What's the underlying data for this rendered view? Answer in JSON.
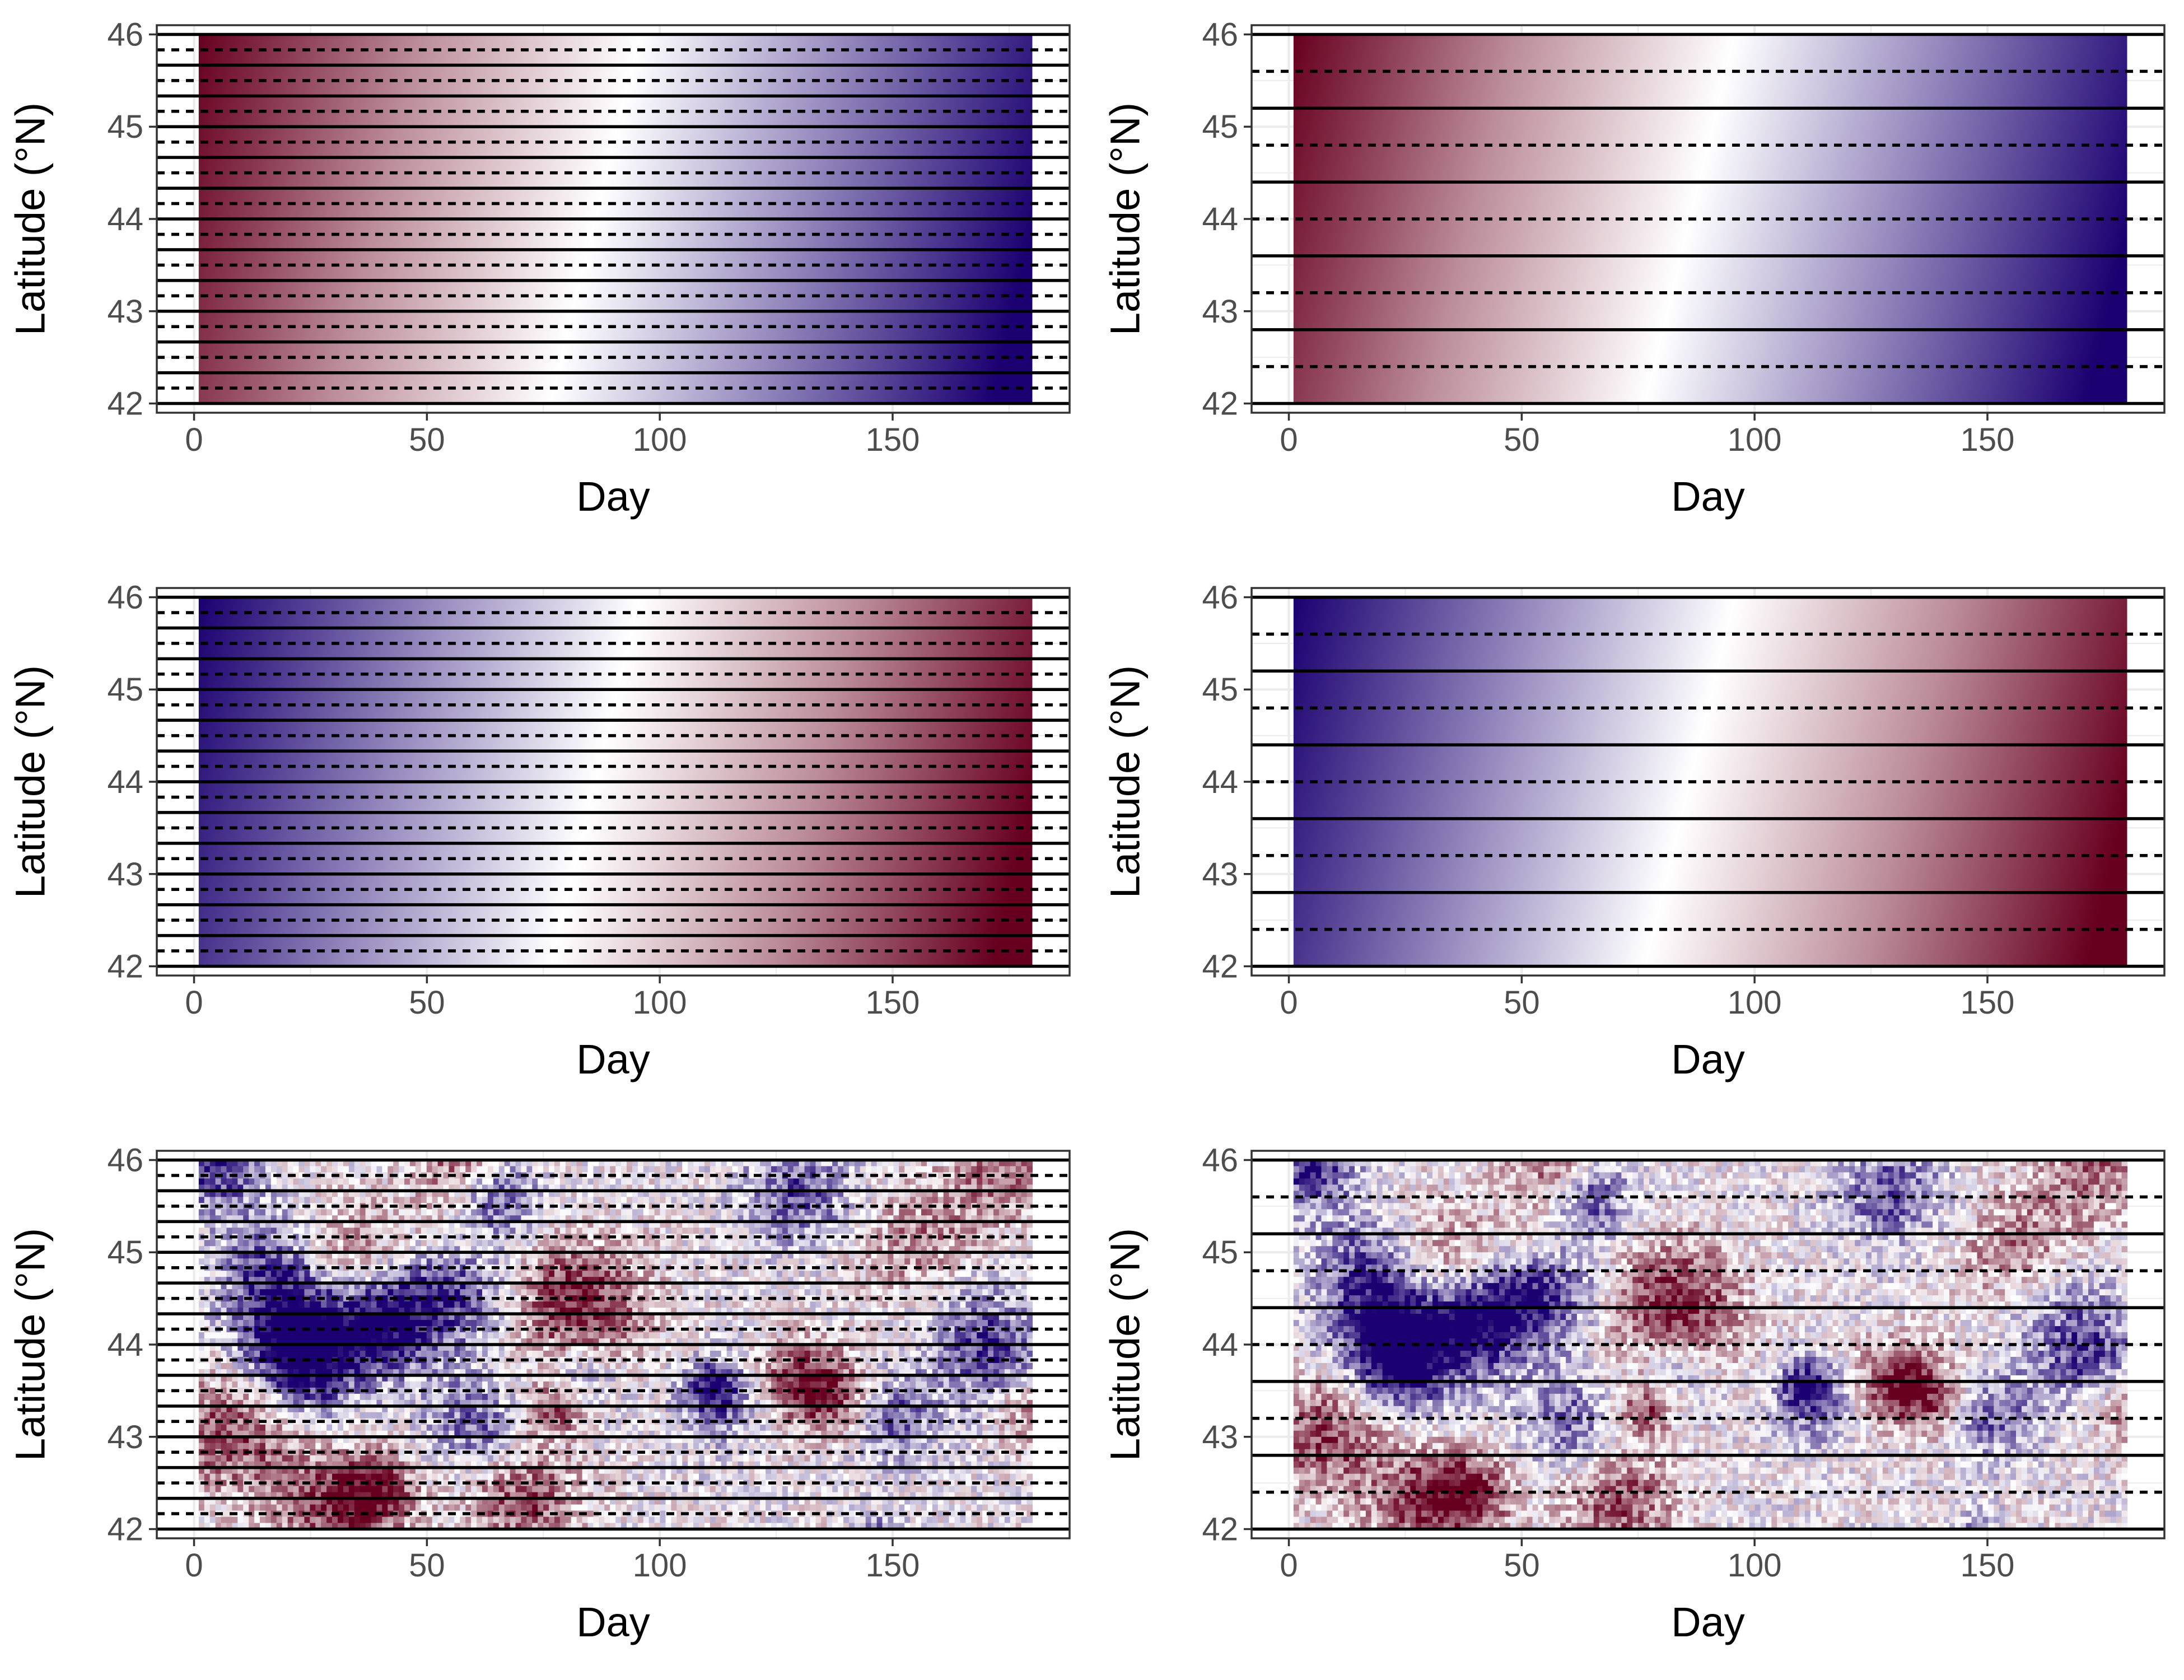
{
  "colors": {
    "low": "#67001f",
    "mid": "#ffffff",
    "high": "#1a0070",
    "panel_border": "#333333",
    "grid": "#ebebeb",
    "line": "#000000"
  },
  "chart_data": [
    {
      "type": "heatmap",
      "panel": "top-left",
      "pattern": "gradient-diagonal",
      "field_direction": "warm-to-cool",
      "xlabel": "Day",
      "ylabel": "Latitude (°N)",
      "x_ticks": [
        0,
        50,
        100,
        150
      ],
      "y_ticks": [
        42,
        43,
        44,
        45,
        46
      ],
      "xlim": [
        -8,
        188
      ],
      "ylim": [
        41.9,
        46.1
      ],
      "day_range": [
        1,
        180
      ],
      "lat_range": [
        42,
        46
      ],
      "solid_lines_lat": [
        42,
        42.333,
        42.667,
        43,
        43.333,
        43.667,
        44,
        44.333,
        44.667,
        45,
        45.333,
        45.667,
        46
      ],
      "dashed_lines_lat": [
        42.167,
        42.5,
        42.833,
        43.167,
        43.5,
        43.833,
        44.167,
        44.5,
        44.833,
        45.167,
        45.5,
        45.833
      ]
    },
    {
      "type": "heatmap",
      "panel": "top-right",
      "pattern": "gradient-diagonal",
      "field_direction": "warm-to-cool",
      "xlabel": "Day",
      "ylabel": "Latitude (°N)",
      "x_ticks": [
        0,
        50,
        100,
        150
      ],
      "y_ticks": [
        42,
        43,
        44,
        45,
        46
      ],
      "xlim": [
        -8,
        188
      ],
      "ylim": [
        41.9,
        46.1
      ],
      "day_range": [
        1,
        180
      ],
      "lat_range": [
        42,
        46
      ],
      "solid_lines_lat": [
        42,
        42.8,
        43.6,
        44.4,
        45.2,
        46
      ],
      "dashed_lines_lat": [
        42.4,
        43.2,
        44,
        44.8,
        45.6
      ]
    },
    {
      "type": "heatmap",
      "panel": "middle-left",
      "pattern": "gradient-diagonal",
      "field_direction": "cool-to-warm",
      "xlabel": "Day",
      "ylabel": "Latitude (°N)",
      "x_ticks": [
        0,
        50,
        100,
        150
      ],
      "y_ticks": [
        42,
        43,
        44,
        45,
        46
      ],
      "xlim": [
        -8,
        188
      ],
      "ylim": [
        41.9,
        46.1
      ],
      "day_range": [
        1,
        180
      ],
      "lat_range": [
        42,
        46
      ],
      "solid_lines_lat": [
        42,
        42.333,
        42.667,
        43,
        43.333,
        43.667,
        44,
        44.333,
        44.667,
        45,
        45.333,
        45.667,
        46
      ],
      "dashed_lines_lat": [
        42.167,
        42.5,
        42.833,
        43.167,
        43.5,
        43.833,
        44.167,
        44.5,
        44.833,
        45.167,
        45.5,
        45.833
      ]
    },
    {
      "type": "heatmap",
      "panel": "middle-right",
      "pattern": "gradient-diagonal",
      "field_direction": "cool-to-warm",
      "xlabel": "Day",
      "ylabel": "Latitude (°N)",
      "x_ticks": [
        0,
        50,
        100,
        150
      ],
      "y_ticks": [
        42,
        43,
        44,
        45,
        46
      ],
      "xlim": [
        -8,
        188
      ],
      "ylim": [
        41.9,
        46.1
      ],
      "day_range": [
        1,
        180
      ],
      "lat_range": [
        42,
        46
      ],
      "solid_lines_lat": [
        42,
        42.8,
        43.6,
        44.4,
        45.2,
        46
      ],
      "dashed_lines_lat": [
        42.4,
        43.2,
        44,
        44.8,
        45.6
      ]
    },
    {
      "type": "heatmap",
      "panel": "bottom-left",
      "pattern": "random-noise",
      "xlabel": "Day",
      "ylabel": "Latitude (°N)",
      "x_ticks": [
        0,
        50,
        100,
        150
      ],
      "y_ticks": [
        42,
        43,
        44,
        45,
        46
      ],
      "xlim": [
        -8,
        188
      ],
      "ylim": [
        41.9,
        46.1
      ],
      "day_range": [
        1,
        180
      ],
      "lat_range": [
        42,
        46
      ],
      "solid_lines_lat": [
        42,
        42.333,
        42.667,
        43,
        43.333,
        43.667,
        44,
        44.333,
        44.667,
        45,
        45.333,
        45.667,
        46
      ],
      "dashed_lines_lat": [
        42.167,
        42.5,
        42.833,
        43.167,
        43.5,
        43.833,
        44.167,
        44.5,
        44.833,
        45.167,
        45.5,
        45.833
      ]
    },
    {
      "type": "heatmap",
      "panel": "bottom-right",
      "pattern": "random-noise",
      "xlabel": "Day",
      "ylabel": "Latitude (°N)",
      "x_ticks": [
        0,
        50,
        100,
        150
      ],
      "y_ticks": [
        42,
        43,
        44,
        45,
        46
      ],
      "xlim": [
        -8,
        188
      ],
      "ylim": [
        41.9,
        46.1
      ],
      "day_range": [
        1,
        180
      ],
      "lat_range": [
        42,
        46
      ],
      "solid_lines_lat": [
        42,
        42.8,
        43.6,
        44.4,
        45.2,
        46
      ],
      "dashed_lines_lat": [
        42.4,
        43.2,
        44,
        44.8,
        45.6
      ]
    }
  ]
}
